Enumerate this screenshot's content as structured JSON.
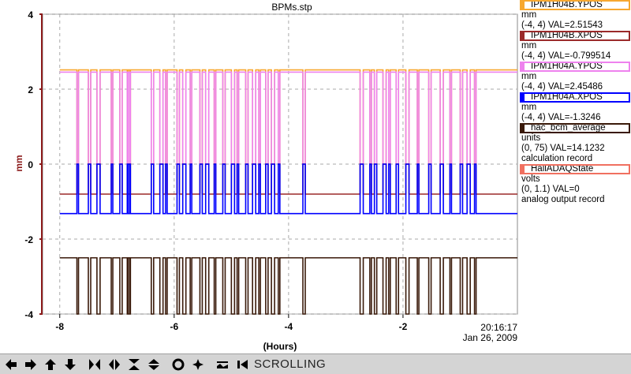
{
  "window": {
    "title": "BPMs.stp"
  },
  "axis": {
    "ylabel": "mm",
    "xlabel": "(Hours)",
    "time": "20:16:17",
    "date": "Jan 26, 2009"
  },
  "legend": [
    {
      "name": "IPM1H04B.YPOS",
      "color": "#f7a830",
      "line1": "mm",
      "line2": "(-4, 4) VAL=2.51543"
    },
    {
      "name": "IPM1H04B.XPOS",
      "color": "#9b2a2a",
      "line1": "mm",
      "line2": "(-4, 4) VAL=-0.799514"
    },
    {
      "name": "IPM1H04A.YPOS",
      "color": "#ee82ee",
      "line1": "mm",
      "line2": "(-4, 4) VAL=2.45486"
    },
    {
      "name": "IPM1H04A.XPOS",
      "color": "#0000ff",
      "line1": "mm",
      "line2": "(-4, 4) VAL=-1.3246"
    },
    {
      "name": "hac_bcm_average",
      "color": "#3a1a0a",
      "line1": "units",
      "line2": "(0, 75) VAL=14.1232",
      "line3": "calculation record"
    },
    {
      "name": "HallADAQState",
      "color": "#f07060",
      "line1": "volts",
      "line2": "(0, 1.1) VAL=0",
      "line3": "analog output record"
    }
  ],
  "chart_data": {
    "type": "line",
    "xlabel": "(Hours)",
    "ylabel": "mm",
    "xlim": [
      -8.3,
      0
    ],
    "ylim": [
      -4,
      4
    ],
    "xticks": [
      "-8",
      "-6",
      "-4",
      "-2"
    ],
    "yticks": [
      "4",
      "2",
      "0",
      "-2",
      "-4"
    ],
    "grid": true,
    "series": [
      {
        "name": "IPM1H04B.YPOS",
        "color": "#f7a830",
        "baseline": 2.515,
        "dropout_to": 0
      },
      {
        "name": "IPM1H04B.XPOS",
        "color": "#9b2a2a",
        "baseline": -0.8,
        "dropout_to": 0
      },
      {
        "name": "IPM1H04A.YPOS",
        "color": "#ee82ee",
        "baseline": 2.455,
        "dropout_to": 0
      },
      {
        "name": "IPM1H04A.XPOS",
        "color": "#0000ff",
        "baseline": -1.32,
        "dropout_to": 0
      },
      {
        "name": "hac_bcm_average",
        "color": "#3a1a0a",
        "baseline": -2.5,
        "dropout_to": -4
      }
    ],
    "dropouts_hours": [
      -7.7,
      -7.5,
      -7.35,
      -7.1,
      -6.95,
      -6.82,
      -6.8,
      -6.4,
      -6.25,
      -6.15,
      -5.95,
      -5.85,
      -5.72,
      -5.55,
      -5.45,
      -5.3,
      -5.15,
      -5.0,
      -4.9,
      -4.75,
      -4.63,
      -4.52,
      -4.4,
      -4.3,
      -4.18,
      -3.75,
      -2.75,
      -2.58,
      -2.5,
      -2.35,
      -2.25,
      -2.12,
      -1.95,
      -1.75,
      -1.55,
      -1.35,
      -1.18,
      -1.0,
      -0.88,
      -0.75
    ]
  },
  "toolbar": {
    "buttons": [
      {
        "icon": "pan-left-icon"
      },
      {
        "icon": "pan-right-icon"
      },
      {
        "icon": "pan-up-icon"
      },
      {
        "icon": "pan-down-icon"
      },
      {
        "icon": "zoom-in-x-icon"
      },
      {
        "icon": "zoom-out-x-icon"
      },
      {
        "icon": "zoom-in-y-icon"
      },
      {
        "icon": "zoom-out-y-icon"
      },
      {
        "icon": "zoom-in-icon"
      },
      {
        "icon": "zoom-out-icon"
      },
      {
        "icon": "autoscale-icon"
      },
      {
        "icon": "play-icon"
      }
    ],
    "mode": "SCROLLING"
  }
}
